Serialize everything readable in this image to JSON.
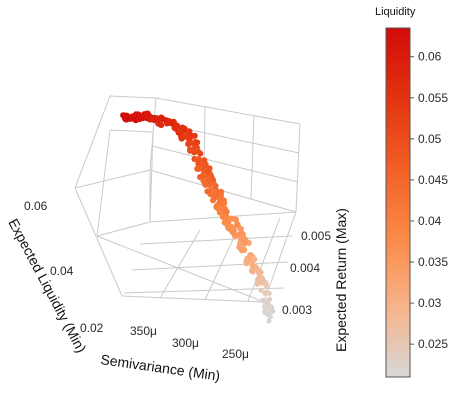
{
  "chart_data": {
    "type": "scatter",
    "title": "",
    "axes": {
      "semivariance": {
        "label": "Semivariance (Min)",
        "ticks": [
          "350μ",
          "300μ",
          "250μ"
        ]
      },
      "liquidity": {
        "label": "Expected Liquidity (Min)",
        "ticks": [
          "0.06",
          "0.04",
          "0.02"
        ]
      },
      "return": {
        "label": "Expected Return (Max)",
        "ticks": [
          "0.005",
          "0.004",
          "0.003"
        ]
      }
    },
    "colorbar": {
      "title": "Liquidity",
      "ticks": [
        "0.06",
        "0.055",
        "0.05",
        "0.045",
        "0.04",
        "0.035",
        "0.03",
        "0.025"
      ],
      "range": [
        0.021,
        0.0635
      ],
      "colors": [
        "#d8d8d8",
        "#f7b38a",
        "#fb8a47",
        "#f25f25",
        "#e2330f",
        "#d30b0a"
      ]
    },
    "points": {
      "count": 280,
      "liquidity_range": [
        0.021,
        0.0635
      ],
      "semivariance_range": [
        0.00022,
        0.00038
      ],
      "return_range": [
        0.0028,
        0.0055
      ]
    },
    "grid": true,
    "legend": "colorbar-right"
  }
}
